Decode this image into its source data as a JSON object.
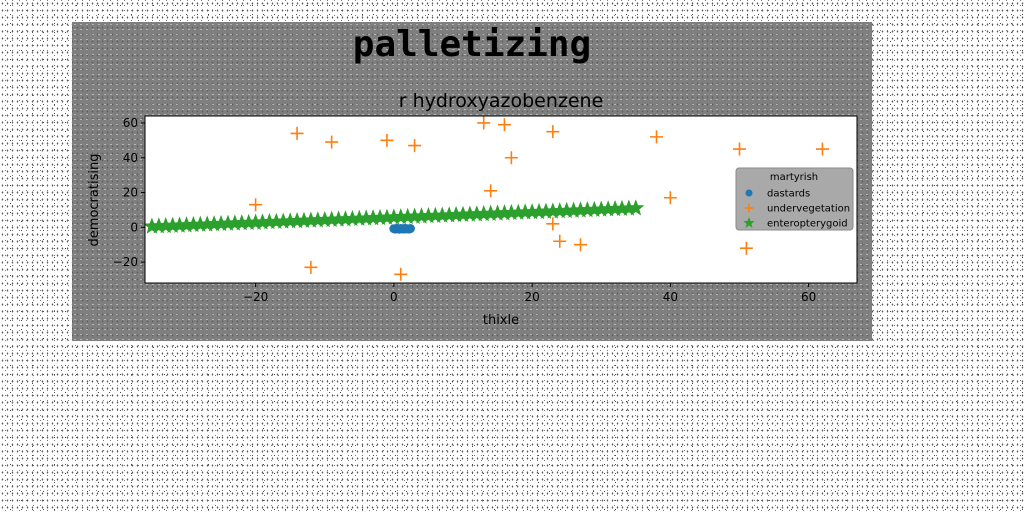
{
  "suptitle": "palletizing",
  "chart_data": {
    "type": "scatter",
    "title": "r hydroxyazobenzene",
    "xlabel": "thixle",
    "ylabel": "democratising",
    "xlim": [
      -36,
      67
    ],
    "ylim": [
      -32,
      64
    ],
    "xticks": [
      -20,
      0,
      20,
      40,
      60
    ],
    "yticks": [
      -20,
      0,
      20,
      40,
      60
    ],
    "grid": false,
    "legend": {
      "title": "martyrish",
      "placement": "center-right"
    },
    "series": [
      {
        "name": "dastards",
        "marker": "circle",
        "color": "#1f77b4",
        "x": [
          0.0,
          0.2,
          0.4,
          0.6,
          0.8,
          1.0,
          1.2,
          1.4,
          1.6,
          1.8,
          2.0,
          2.2,
          2.4
        ],
        "y": [
          -0.8,
          -1.0,
          -0.6,
          -0.9,
          -1.1,
          -0.7,
          -0.8,
          -1.0,
          -0.6,
          -0.9,
          -0.8,
          -1.0,
          -0.7
        ]
      },
      {
        "name": "undervegetation",
        "marker": "plus",
        "color": "#ff7f0e",
        "x": [
          -14,
          -9,
          -1,
          3,
          13,
          16,
          23,
          38,
          -20,
          17,
          14,
          23,
          24,
          27,
          40,
          50,
          51,
          62,
          -12,
          1
        ],
        "y": [
          54,
          49,
          50,
          47,
          60,
          59,
          55,
          52,
          13,
          40,
          21,
          2,
          -8,
          -10,
          17,
          45,
          -12,
          45,
          -23,
          -27
        ]
      },
      {
        "name": "enteropterygoid",
        "marker": "star",
        "color": "#2ca02c",
        "x_start": -35,
        "x_end": 35,
        "count": 71,
        "y_start": 0.5,
        "y_end": 11
      }
    ]
  }
}
